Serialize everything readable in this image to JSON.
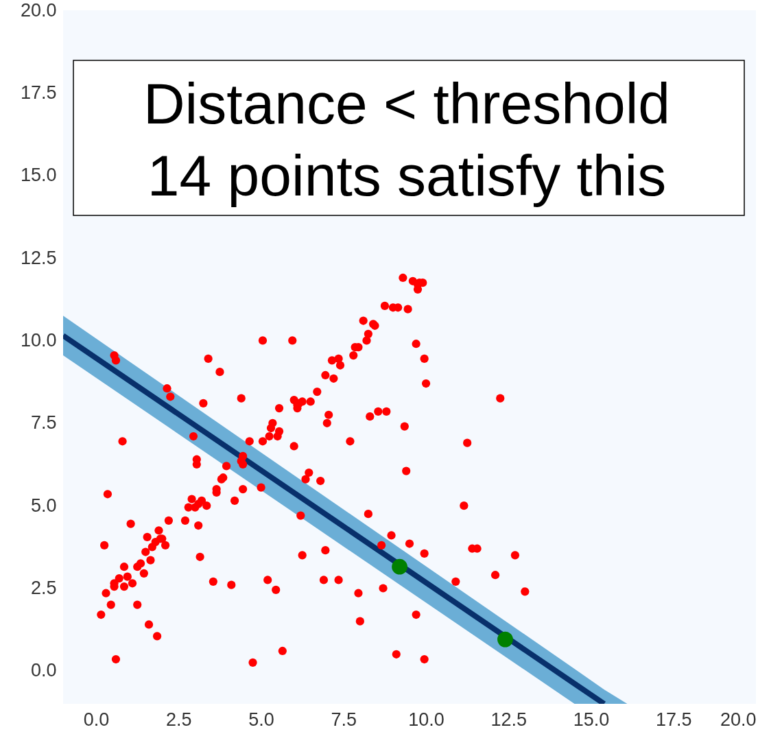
{
  "chart_data": {
    "type": "scatter",
    "annotations": [
      "Distance < threshold",
      "14 points satisfy this"
    ],
    "xlim": [
      -1,
      20
    ],
    "ylim": [
      -1,
      20
    ],
    "xticks": [
      {
        "value": 0,
        "label": "0.0"
      },
      {
        "value": 2.5,
        "label": "2.5"
      },
      {
        "value": 5,
        "label": "5.0"
      },
      {
        "value": 7.5,
        "label": "7.5"
      },
      {
        "value": 10,
        "label": "10.0"
      },
      {
        "value": 12.5,
        "label": "12.5"
      },
      {
        "value": 15,
        "label": "15.0"
      },
      {
        "value": 17.5,
        "label": "17.5"
      },
      {
        "value": 20,
        "label": "20.0"
      }
    ],
    "yticks": [
      {
        "value": 0,
        "label": "0.0"
      },
      {
        "value": 2.5,
        "label": "2.5"
      },
      {
        "value": 5,
        "label": "5.0"
      },
      {
        "value": 7.5,
        "label": "7.5"
      },
      {
        "value": 10,
        "label": "10.0"
      },
      {
        "value": 12.5,
        "label": "12.5"
      },
      {
        "value": 15,
        "label": "15.0"
      },
      {
        "value": 17.5,
        "label": "17.5"
      },
      {
        "value": 20,
        "label": "20.0"
      }
    ],
    "series": [
      {
        "type": "line",
        "color": "#08306b",
        "x": [
          -1,
          14.5,
          15.4,
          16.1
        ],
        "values": [
          10.15,
          -0.39,
          -1,
          null
        ],
        "marker": "none",
        "lower": [
          9.55,
          -1,
          -1,
          -1
        ],
        "upper": [
          10.75,
          0.06,
          -0.57,
          -1
        ]
      },
      {
        "color": "#ff0000",
        "marker": "circle",
        "x": [
          0.15,
          0.25,
          0.3,
          0.35,
          0.45,
          0.55,
          0.55,
          0.6,
          0.55,
          0.6,
          0.7,
          0.8,
          0.85,
          0.85,
          0.95,
          1.05,
          1.1,
          1.25,
          1.25,
          1.35,
          1.45,
          1.5,
          1.55,
          1.6,
          1.65,
          1.7,
          1.8,
          1.85,
          1.9,
          1.95,
          2.0,
          2.1,
          2.15,
          2.25,
          2.2,
          2.7,
          2.8,
          2.9,
          2.95,
          3.05,
          3.05,
          3.0,
          3.1,
          3.1,
          3.2,
          3.15,
          3.25,
          3.35,
          3.4,
          3.55,
          3.65,
          3.65,
          3.75,
          3.8,
          3.85,
          3.95,
          4.1,
          4.2,
          4.4,
          4.4,
          4.45,
          4.45,
          4.45,
          4.65,
          4.75,
          5.0,
          5.05,
          5.05,
          5.2,
          5.25,
          5.3,
          5.35,
          5.45,
          5.5,
          5.55,
          5.55,
          5.65,
          5.95,
          6.0,
          6.0,
          6.1,
          6.1,
          6.15,
          6.2,
          6.25,
          6.25,
          6.35,
          6.45,
          6.5,
          6.7,
          6.8,
          6.9,
          6.95,
          6.95,
          7.0,
          7.05,
          7.15,
          7.2,
          7.35,
          7.35,
          7.4,
          7.7,
          7.8,
          7.85,
          7.95,
          7.95,
          8.0,
          8.1,
          8.2,
          8.25,
          8.25,
          8.3,
          8.4,
          8.45,
          8.55,
          8.65,
          8.7,
          8.75,
          8.8,
          8.95,
          9.0,
          9.1,
          9.15,
          9.3,
          9.35,
          9.4,
          9.45,
          9.5,
          9.6,
          9.7,
          9.7,
          9.75,
          9.75,
          9.8,
          9.9,
          9.95,
          9.95,
          9.95,
          10.0,
          10.9,
          11.15,
          11.25,
          11.4,
          11.55,
          12.1,
          12.25,
          12.7,
          13.0
        ],
        "values": [
          1.7,
          3.8,
          2.35,
          5.35,
          2.0,
          2.55,
          2.65,
          0.35,
          9.55,
          9.4,
          2.8,
          6.95,
          2.55,
          3.15,
          2.85,
          4.45,
          2.65,
          2.0,
          3.15,
          3.25,
          2.95,
          3.6,
          4.05,
          1.4,
          3.35,
          3.75,
          3.9,
          1.05,
          4.25,
          4.0,
          4.0,
          3.8,
          8.55,
          8.3,
          4.55,
          4.55,
          4.95,
          5.2,
          7.1,
          6.4,
          6.25,
          4.95,
          4.4,
          5.05,
          5.15,
          3.45,
          8.1,
          5.0,
          9.45,
          2.7,
          5.4,
          5.5,
          9.05,
          5.8,
          5.85,
          6.2,
          2.6,
          5.15,
          8.25,
          6.35,
          6.5,
          6.25,
          5.5,
          6.95,
          0.25,
          5.55,
          6.95,
          10.0,
          2.75,
          7.1,
          7.35,
          7.5,
          2.45,
          7.1,
          7.25,
          7.95,
          0.6,
          10.0,
          6.8,
          8.2,
          8.05,
          7.95,
          8.1,
          4.7,
          3.5,
          8.15,
          5.8,
          6.0,
          8.15,
          8.45,
          5.75,
          2.75,
          8.95,
          3.65,
          7.5,
          7.75,
          9.4,
          8.85,
          2.75,
          9.45,
          9.25,
          6.95,
          9.55,
          9.8,
          9.8,
          2.35,
          1.5,
          10.6,
          10.0,
          10.2,
          4.75,
          7.7,
          10.5,
          10.45,
          7.85,
          3.8,
          2.5,
          11.05,
          7.85,
          4.1,
          11.0,
          0.5,
          11.0,
          11.9,
          7.4,
          6.05,
          10.95,
          3.85,
          11.8,
          9.9,
          1.7,
          11.55,
          11.7,
          11.75,
          11.75,
          3.55,
          9.45,
          0.35,
          8.7,
          2.7,
          5.0,
          6.9,
          3.7,
          3.7,
          2.9,
          8.25,
          3.5,
          2.4
        ]
      },
      {
        "color": "#008000",
        "marker": "circle",
        "x": [
          9.2,
          12.4
        ],
        "values": [
          3.15,
          0.95
        ]
      }
    ]
  }
}
